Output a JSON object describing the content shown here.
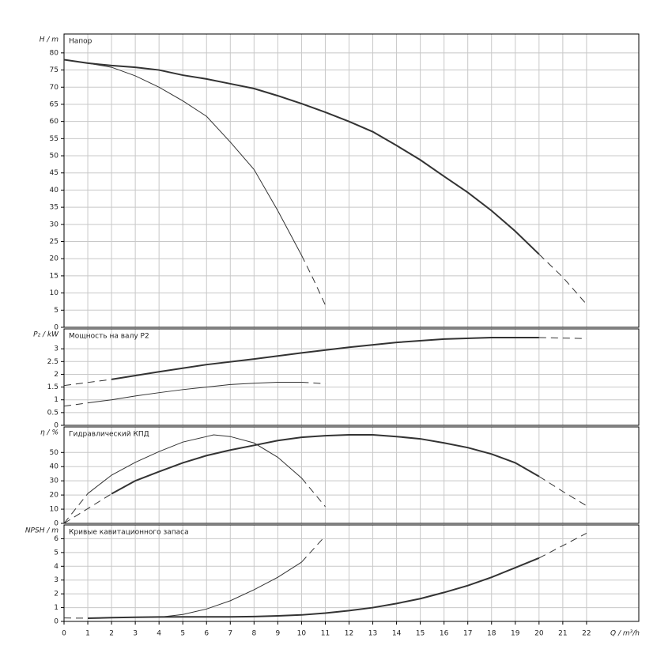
{
  "chart_data": [
    {
      "type": "line",
      "ylabel": "H / m",
      "title": "Напор",
      "xlim": [
        0,
        24.2
      ],
      "xticks": [
        0,
        1,
        2,
        3,
        4,
        5,
        6,
        7,
        8,
        9,
        10,
        11,
        12,
        13,
        14,
        15,
        16,
        17,
        18,
        19,
        20,
        21,
        22
      ],
      "ylim": [
        0,
        85.5
      ],
      "yticks": [
        0,
        5,
        10,
        15,
        20,
        25,
        30,
        35,
        40,
        45,
        50,
        55,
        60,
        65,
        70,
        75,
        80
      ],
      "grid": true,
      "series": [
        {
          "color": "#333333",
          "width": 2,
          "dashed": false,
          "x": [
            0,
            1,
            2,
            3,
            4,
            5,
            6,
            7,
            8,
            9,
            10,
            11,
            12,
            13,
            14,
            15,
            16,
            17,
            18,
            19,
            20
          ],
          "values": [
            78,
            77,
            76.3,
            75.8,
            75,
            73.5,
            72.4,
            71,
            69.6,
            67.5,
            65.2,
            62.7,
            60,
            57,
            53,
            48.8,
            44,
            39.3,
            34,
            28,
            21.3
          ]
        },
        {
          "color": "#333333",
          "width": 1,
          "dashed": true,
          "x": [
            20,
            21,
            22
          ],
          "values": [
            21.3,
            14.6,
            6.7
          ]
        },
        {
          "color": "#333333",
          "width": 1,
          "dashed": false,
          "x": [
            0,
            1,
            2,
            3,
            4,
            5,
            6,
            7,
            8,
            9,
            10
          ],
          "values": [
            78,
            77,
            75.8,
            73.3,
            70,
            66,
            61.5,
            54,
            46,
            34,
            21
          ]
        },
        {
          "color": "#333333",
          "width": 1,
          "dashed": true,
          "x": [
            10,
            10.5,
            11
          ],
          "values": [
            21,
            14,
            6.5
          ]
        }
      ]
    },
    {
      "type": "line",
      "ylabel": "P₂ / kW",
      "title": "Мощность на валу P2",
      "xlim": [
        0,
        24.2
      ],
      "xticks": [
        0,
        1,
        2,
        3,
        4,
        5,
        6,
        7,
        8,
        9,
        10,
        11,
        12,
        13,
        14,
        15,
        16,
        17,
        18,
        19,
        20,
        21,
        22
      ],
      "ylim": [
        0,
        3.78
      ],
      "yticks": [
        0,
        0.5,
        1,
        1.5,
        2,
        2.5,
        3
      ],
      "grid": true,
      "series": [
        {
          "color": "#333333",
          "width": 1,
          "dashed": true,
          "x": [
            0,
            2
          ],
          "values": [
            1.56,
            1.8
          ]
        },
        {
          "color": "#333333",
          "width": 2,
          "dashed": false,
          "x": [
            2,
            4,
            6,
            8,
            10,
            12,
            14,
            16,
            18,
            20
          ],
          "values": [
            1.8,
            2.1,
            2.38,
            2.6,
            2.84,
            3.06,
            3.25,
            3.38,
            3.44,
            3.44
          ]
        },
        {
          "color": "#333333",
          "width": 1,
          "dashed": true,
          "x": [
            20,
            22
          ],
          "values": [
            3.44,
            3.4
          ]
        },
        {
          "color": "#333333",
          "width": 1,
          "dashed": true,
          "x": [
            0,
            1
          ],
          "values": [
            0.75,
            0.88
          ]
        },
        {
          "color": "#333333",
          "width": 1,
          "dashed": false,
          "x": [
            1,
            2,
            3,
            4,
            5,
            6,
            7,
            8,
            9,
            10
          ],
          "values": [
            0.88,
            1,
            1.15,
            1.28,
            1.4,
            1.5,
            1.6,
            1.65,
            1.69,
            1.69
          ]
        },
        {
          "color": "#333333",
          "width": 1,
          "dashed": true,
          "x": [
            10,
            11
          ],
          "values": [
            1.69,
            1.63
          ]
        }
      ]
    },
    {
      "type": "line",
      "ylabel": "η / %",
      "title": "Гидравлический КПД",
      "xlim": [
        0,
        24.2
      ],
      "xticks": [
        0,
        1,
        2,
        3,
        4,
        5,
        6,
        7,
        8,
        9,
        10,
        11,
        12,
        13,
        14,
        15,
        16,
        17,
        18,
        19,
        20,
        21,
        22
      ],
      "ylim": [
        0,
        68
      ],
      "yticks": [
        0,
        10,
        20,
        30,
        40,
        50
      ],
      "grid": true,
      "series": [
        {
          "color": "#333333",
          "width": 1,
          "dashed": true,
          "x": [
            0,
            2
          ],
          "values": [
            0,
            20.8
          ]
        },
        {
          "color": "#333333",
          "width": 2,
          "dashed": false,
          "x": [
            2,
            3,
            4,
            5,
            6,
            7,
            8,
            9,
            10,
            11,
            12,
            13,
            14,
            15,
            16,
            17,
            18,
            19,
            20
          ],
          "values": [
            20.8,
            30,
            36.5,
            42.7,
            47.8,
            51.7,
            55,
            58.4,
            60.7,
            61.8,
            62.4,
            62.4,
            61.2,
            59.6,
            56.7,
            53.4,
            48.9,
            42.7,
            33.1
          ]
        },
        {
          "color": "#333333",
          "width": 1,
          "dashed": true,
          "x": [
            20,
            21,
            22
          ],
          "values": [
            33.1,
            22.5,
            12.4
          ]
        },
        {
          "color": "#333333",
          "width": 1,
          "dashed": true,
          "x": [
            0,
            1
          ],
          "values": [
            0,
            21
          ]
        },
        {
          "color": "#333333",
          "width": 1,
          "dashed": false,
          "x": [
            1,
            2,
            3,
            4,
            5,
            6,
            6.3,
            7,
            8,
            9,
            10
          ],
          "values": [
            21,
            34,
            43,
            50.6,
            57.3,
            61.2,
            62.4,
            61.2,
            56.7,
            46.6,
            32
          ]
        },
        {
          "color": "#333333",
          "width": 1,
          "dashed": true,
          "x": [
            10,
            11
          ],
          "values": [
            32,
            11.8
          ]
        }
      ]
    },
    {
      "type": "line",
      "ylabel": "NPSH / m",
      "title": "Кривые кавитационного запаса",
      "xlabel": "Q / m³/h",
      "xlim": [
        0,
        24.2
      ],
      "xticks": [
        0,
        1,
        2,
        3,
        4,
        5,
        6,
        7,
        8,
        9,
        10,
        11,
        12,
        13,
        14,
        15,
        16,
        17,
        18,
        19,
        20,
        21,
        22
      ],
      "ylim": [
        0,
        7
      ],
      "yticks": [
        0,
        1,
        2,
        3,
        4,
        5,
        6
      ],
      "grid": true,
      "series": [
        {
          "color": "#333333",
          "width": 1,
          "dashed": true,
          "x": [
            0,
            1
          ],
          "values": [
            0.25,
            0.23
          ]
        },
        {
          "color": "#333333",
          "width": 2,
          "dashed": false,
          "x": [
            1,
            2,
            3,
            4,
            5,
            6,
            7,
            8,
            9,
            10,
            11,
            12,
            13,
            14,
            15,
            16,
            17,
            18,
            19,
            20
          ],
          "values": [
            0.23,
            0.27,
            0.3,
            0.32,
            0.33,
            0.33,
            0.33,
            0.35,
            0.4,
            0.47,
            0.6,
            0.78,
            1,
            1.3,
            1.65,
            2.1,
            2.6,
            3.2,
            3.9,
            4.6
          ]
        },
        {
          "color": "#333333",
          "width": 1,
          "dashed": true,
          "x": [
            20,
            21,
            22
          ],
          "values": [
            4.6,
            5.5,
            6.4
          ]
        },
        {
          "color": "#333333",
          "width": 1,
          "dashed": false,
          "x": [
            4,
            5,
            6,
            7,
            8,
            9,
            10
          ],
          "values": [
            0.3,
            0.5,
            0.9,
            1.5,
            2.3,
            3.2,
            4.3
          ]
        },
        {
          "color": "#333333",
          "width": 1,
          "dashed": true,
          "x": [
            10,
            11
          ],
          "values": [
            4.3,
            6.2
          ]
        }
      ]
    }
  ]
}
